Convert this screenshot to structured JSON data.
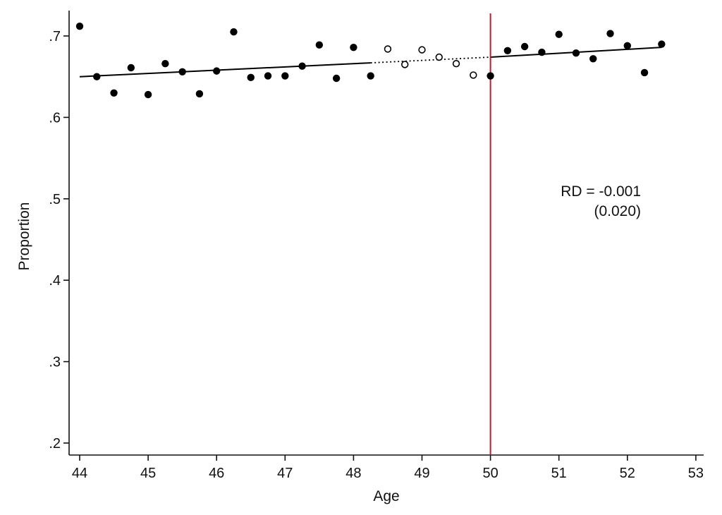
{
  "chart_data": {
    "type": "scatter",
    "title": "",
    "xlabel": "Age",
    "ylabel": "Proportion",
    "xlim": [
      43.9,
      53.2
    ],
    "ylim": [
      0.185,
      0.735
    ],
    "x_ticks": [
      44,
      45,
      46,
      47,
      48,
      49,
      50,
      51,
      52,
      53
    ],
    "x_tick_labels": [
      "44",
      "45",
      "46",
      "47",
      "48",
      "49",
      "50",
      "51",
      "52",
      "53"
    ],
    "y_ticks": [
      0.2,
      0.3,
      0.4,
      0.5,
      0.6,
      0.7
    ],
    "y_tick_labels": [
      ".2",
      ".3",
      ".4",
      ".5",
      ".6",
      ".7"
    ],
    "grid": false,
    "cutoff": 50,
    "colors": {
      "points": "#000000",
      "fit": "#000000",
      "cutoff_line": "#b0223a"
    },
    "series": [
      {
        "style": "filled",
        "x": [
          44,
          44.25,
          44.5,
          44.75,
          45,
          45.25,
          45.5,
          45.75,
          46,
          46.25,
          46.5,
          46.75,
          47,
          47.25,
          47.5,
          47.75,
          48,
          48.25,
          50,
          50.25,
          50.5,
          50.75,
          51,
          51.25,
          51.5,
          51.75,
          52,
          52.25,
          52.5
        ],
        "y": [
          0.712,
          0.65,
          0.63,
          0.661,
          0.628,
          0.666,
          0.656,
          0.629,
          0.657,
          0.705,
          0.649,
          0.651,
          0.651,
          0.663,
          0.689,
          0.648,
          0.686,
          0.651,
          0.651,
          0.682,
          0.687,
          0.68,
          0.702,
          0.679,
          0.672,
          0.703,
          0.688,
          0.655,
          0.69
        ]
      },
      {
        "style": "hollow",
        "x": [
          48.5,
          48.75,
          49,
          49.25,
          49.5,
          49.75
        ],
        "y": [
          0.684,
          0.665,
          0.683,
          0.674,
          0.666,
          0.652
        ]
      }
    ],
    "fit_lines": [
      {
        "style": "solid",
        "x": [
          44,
          48.25
        ],
        "y": [
          0.65,
          0.667
        ]
      },
      {
        "style": "dotted",
        "x": [
          48.25,
          50
        ],
        "y": [
          0.667,
          0.674
        ]
      },
      {
        "style": "solid",
        "x": [
          50,
          52.5
        ],
        "y": [
          0.674,
          0.686
        ]
      }
    ],
    "annotations": [
      "RD = -0.001",
      "(0.020)"
    ]
  }
}
